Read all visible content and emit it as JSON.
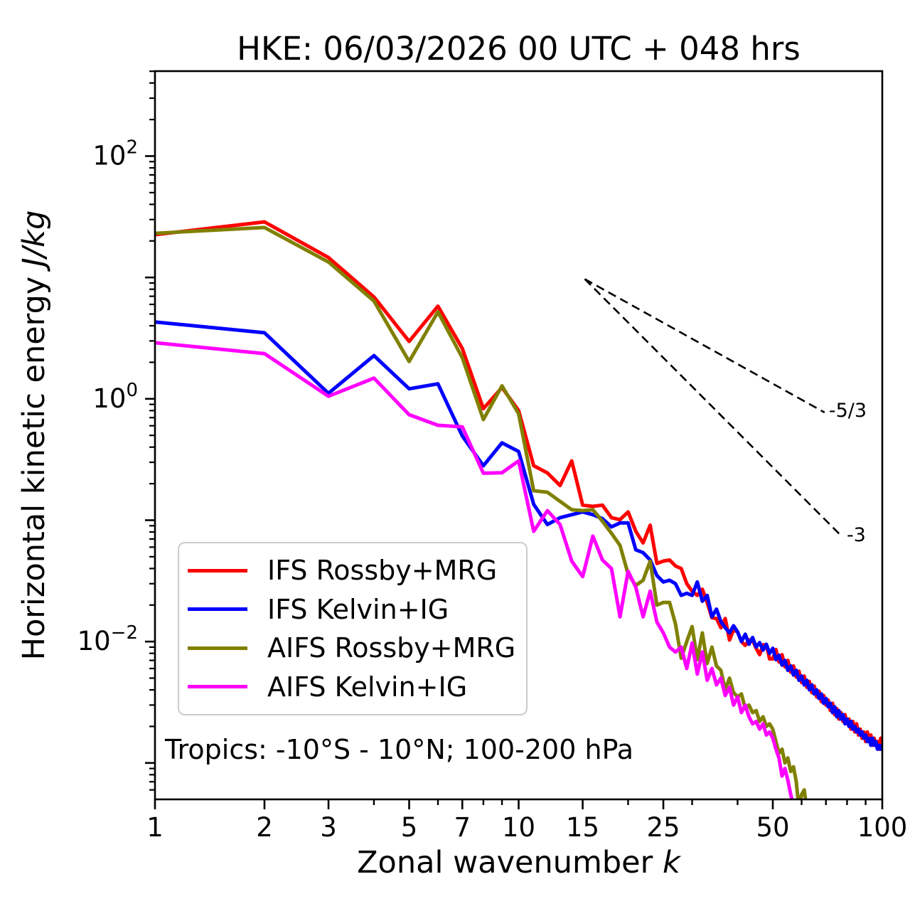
{
  "title": "HKE: 06/03/2026 00 UTC + 048 hrs",
  "annotation": "Tropics: -10°S - 10°N; 100-200 hPa",
  "axes": {
    "x_label": "Zonal wavenumber",
    "x_label_var": "k",
    "y_label": "Horizontal kinetic energy",
    "y_label_units": "J/kg",
    "x_scale": "log",
    "y_scale": "log",
    "x_log_range": [
      0,
      2
    ],
    "y_log_range": [
      -3.3,
      2.7
    ],
    "x_ticks_labeled": [
      1,
      2,
      3,
      5,
      7,
      10,
      15,
      25,
      50,
      100
    ],
    "x_ticks_minor": [
      4,
      6,
      8,
      9,
      20,
      30,
      40,
      60,
      70,
      80,
      90
    ],
    "y_ticks_labeled_exponents": [
      2,
      0,
      -2
    ],
    "y_ticks_decade_exponents": [
      2,
      1,
      0,
      -1,
      -2,
      -3
    ],
    "grid": false
  },
  "legend": {
    "items": [
      {
        "label": "IFS Rossby+MRG",
        "color": "#ff0000"
      },
      {
        "label": "IFS Kelvin+IG",
        "color": "#0000ff"
      },
      {
        "label": "AIFS Rossby+MRG",
        "color": "#808000"
      },
      {
        "label": "AIFS Kelvin+IG",
        "color": "#ff00ff"
      }
    ]
  },
  "ref_lines": [
    {
      "label": "-5/3",
      "slope": -1.6667,
      "k1": 15.2,
      "v1": 9.7,
      "k2": 69.4,
      "v2": 0.772
    },
    {
      "label": "-3",
      "slope": -3,
      "k1": 15.2,
      "v1": 9.7,
      "k2": 77.7,
      "v2": 0.0727
    }
  ],
  "chart_data": {
    "type": "line",
    "title": "HKE: 06/03/2026 00 UTC + 048 hrs",
    "xlabel": "Zonal wavenumber k",
    "ylabel": "Horizontal kinetic energy J/kg",
    "x_scale": "log",
    "y_scale": "log",
    "xlim": [
      1,
      100
    ],
    "ylim": [
      0.0005,
      500
    ],
    "legend_position": "lower left",
    "series": [
      {
        "name": "IFS Rossby+MRG",
        "color": "#ff0000",
        "k": {
          "from": 1,
          "to": 100,
          "step": 1
        },
        "values": [
          22.5,
          28.7,
          14.6,
          6.9,
          2.97,
          5.8,
          2.6,
          0.83,
          1.24,
          0.8,
          0.281,
          0.245,
          0.193,
          0.308,
          0.133,
          0.13,
          0.133,
          0.105,
          0.101,
          0.117,
          0.081,
          0.065,
          0.091,
          0.044,
          0.046,
          0.047,
          0.042,
          0.04,
          0.03,
          0.026,
          0.024,
          0.027,
          0.021,
          0.0157,
          0.0155,
          0.013,
          0.0155,
          0.0103,
          0.0125,
          0.012,
          0.01,
          0.0093,
          0.0103,
          0.0103,
          0.0088,
          0.0078,
          0.0094,
          0.0094,
          0.0072,
          0.0072,
          0.0086,
          0.0068,
          0.0078,
          0.0062,
          0.007,
          0.0056,
          0.0063,
          0.0051,
          0.0057,
          0.0046,
          0.0052,
          0.0042,
          0.0047,
          0.0038,
          0.0043,
          0.0035,
          0.0039,
          0.0032,
          0.0036,
          0.003,
          0.0033,
          0.0027,
          0.0031,
          0.0025,
          0.0028,
          0.0023,
          0.0026,
          0.0022,
          0.0025,
          0.0021,
          0.0023,
          0.0019,
          0.0022,
          0.0018,
          0.0021,
          0.0017,
          0.0019,
          0.0016,
          0.0018,
          0.0015,
          0.0018,
          0.0015,
          0.0017,
          0.0014,
          0.0016,
          0.0014,
          0.0015,
          0.0013,
          0.0016,
          0.0013
        ]
      },
      {
        "name": "IFS Kelvin+IG",
        "color": "#0000ff",
        "k": {
          "from": 1,
          "to": 100,
          "step": 1
        },
        "values": [
          4.3,
          3.5,
          1.11,
          2.27,
          1.21,
          1.33,
          0.494,
          0.281,
          0.434,
          0.368,
          0.135,
          0.092,
          0.105,
          0.111,
          0.117,
          0.111,
          0.103,
          0.088,
          0.095,
          0.095,
          0.057,
          0.054,
          0.047,
          0.035,
          0.031,
          0.032,
          0.03,
          0.024,
          0.025,
          0.024,
          0.031,
          0.0215,
          0.024,
          0.016,
          0.0185,
          0.0146,
          0.013,
          0.0118,
          0.0135,
          0.012,
          0.01,
          0.0115,
          0.0095,
          0.0108,
          0.009,
          0.0098,
          0.0085,
          0.0095,
          0.008,
          0.0088,
          0.0071,
          0.0077,
          0.0064,
          0.007,
          0.0058,
          0.0063,
          0.0053,
          0.0058,
          0.0048,
          0.0052,
          0.0044,
          0.0048,
          0.004,
          0.0044,
          0.0037,
          0.004,
          0.0034,
          0.0037,
          0.0031,
          0.0034,
          0.0029,
          0.0031,
          0.0026,
          0.0029,
          0.0024,
          0.0027,
          0.0023,
          0.0025,
          0.0021,
          0.0023,
          0.002,
          0.0022,
          0.0019,
          0.002,
          0.0018,
          0.0019,
          0.0017,
          0.0018,
          0.0016,
          0.0017,
          0.0015,
          0.0016,
          0.0014,
          0.0016,
          0.0014,
          0.0015,
          0.0013,
          0.0014,
          0.0013,
          0.0014
        ]
      },
      {
        "name": "AIFS Rossby+MRG",
        "color": "#808000",
        "k": {
          "from": 1,
          "to": 63,
          "step": 1
        },
        "values": [
          23.1,
          25.8,
          13.4,
          6.4,
          2.03,
          5.2,
          2.18,
          0.675,
          1.28,
          0.752,
          0.175,
          0.17,
          0.143,
          0.122,
          0.12,
          0.122,
          0.098,
          0.078,
          0.062,
          0.036,
          0.029,
          0.032,
          0.046,
          0.02,
          0.021,
          0.021,
          0.014,
          0.0073,
          0.01,
          0.0133,
          0.0071,
          0.0118,
          0.0066,
          0.009,
          0.0063,
          0.0058,
          0.004,
          0.005,
          0.0038,
          0.0035,
          0.0037,
          0.0028,
          0.003,
          0.0026,
          0.0027,
          0.0022,
          0.0024,
          0.002,
          0.0021,
          0.0019,
          0.0015,
          0.0012,
          0.0013,
          0.001,
          0.0011,
          0.00085,
          0.00093,
          0.0007,
          0.00042,
          0.00055,
          0.0006,
          0.00042,
          0.00028
        ]
      },
      {
        "name": "AIFS Kelvin+IG",
        "color": "#ff00ff",
        "k": {
          "from": 1,
          "to": 58,
          "step": 1
        },
        "values": [
          2.9,
          2.36,
          1.05,
          1.48,
          0.74,
          0.605,
          0.588,
          0.244,
          0.246,
          0.308,
          0.081,
          0.12,
          0.092,
          0.046,
          0.0343,
          0.074,
          0.047,
          0.04,
          0.016,
          0.038,
          0.028,
          0.016,
          0.026,
          0.0145,
          0.0118,
          0.009,
          0.0082,
          0.009,
          0.006,
          0.0097,
          0.0054,
          0.0082,
          0.0048,
          0.006,
          0.0044,
          0.005,
          0.0036,
          0.0042,
          0.003,
          0.0035,
          0.0026,
          0.003,
          0.0024,
          0.0021,
          0.0022,
          0.0019,
          0.0021,
          0.0017,
          0.0018,
          0.0016,
          0.0013,
          0.0011,
          0.00078,
          0.0009,
          0.00072,
          0.00055,
          0.00045,
          0.00036
        ]
      }
    ]
  }
}
